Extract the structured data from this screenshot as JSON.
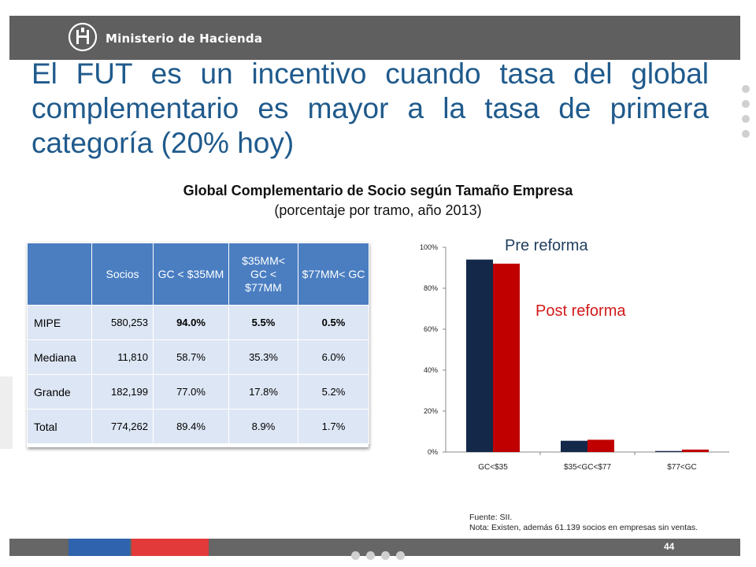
{
  "header": {
    "brand": "Ministerio de Hacienda"
  },
  "title": "El FUT es un incentivo cuando tasa del global complementario es mayor a la tasa de primera categoría (20% hoy)",
  "chart_heading": {
    "title": "Global Complementario de Socio según Tamaño Empresa",
    "subtitle": "(porcentaje por tramo, año 2013)"
  },
  "table": {
    "headers": [
      "",
      "Socios",
      "GC < $35MM",
      "$35MM< GC < $77MM",
      "$77MM< GC"
    ],
    "rows": [
      {
        "label": "MIPE",
        "socios": "580,253",
        "c1": "94.0%",
        "c2": "5.5%",
        "c3": "0.5%"
      },
      {
        "label": "Mediana",
        "socios": "11,810",
        "c1": "58.7%",
        "c2": "35.3%",
        "c3": "6.0%"
      },
      {
        "label": "Grande",
        "socios": "182,199",
        "c1": "77.0%",
        "c2": "17.8%",
        "c3": "5.2%"
      },
      {
        "label": "Total",
        "socios": "774,262",
        "c1": "89.4%",
        "c2": "8.9%",
        "c3": "1.7%"
      }
    ]
  },
  "chart_data": {
    "type": "bar",
    "categories": [
      "GC<$35",
      "$35<GC<$77",
      "$77<GC"
    ],
    "series": [
      {
        "name": "Pre reforma",
        "values": [
          94,
          5.5,
          0.5
        ],
        "color": "#14294a"
      },
      {
        "name": "Post reforma",
        "values": [
          92,
          6,
          1.2
        ],
        "color": "#c00000"
      }
    ],
    "y_ticks": [
      "0%",
      "20%",
      "40%",
      "60%",
      "80%",
      "100%"
    ],
    "ylim": [
      0,
      100
    ],
    "grid": false
  },
  "notes": {
    "source": "Fuente: SII.",
    "note": "Nota: Existen, además  61.139 socios en empresas sin ventas."
  },
  "footer": {
    "page": "44"
  }
}
